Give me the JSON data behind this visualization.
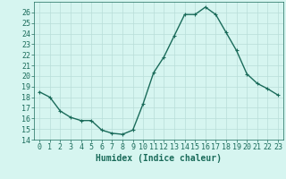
{
  "x": [
    0,
    1,
    2,
    3,
    4,
    5,
    6,
    7,
    8,
    9,
    10,
    11,
    12,
    13,
    14,
    15,
    16,
    17,
    18,
    19,
    20,
    21,
    22,
    23
  ],
  "y": [
    18.5,
    18.0,
    16.7,
    16.1,
    15.8,
    15.8,
    14.9,
    14.6,
    14.5,
    14.9,
    17.4,
    20.3,
    21.8,
    23.8,
    25.8,
    25.8,
    26.5,
    25.8,
    24.1,
    22.4,
    20.2,
    19.3,
    18.8,
    18.2
  ],
  "xlabel": "Humidex (Indice chaleur)",
  "xlim": [
    -0.5,
    23.5
  ],
  "ylim": [
    14,
    27
  ],
  "yticks": [
    14,
    15,
    16,
    17,
    18,
    19,
    20,
    21,
    22,
    23,
    24,
    25,
    26
  ],
  "xticks": [
    0,
    1,
    2,
    3,
    4,
    5,
    6,
    7,
    8,
    9,
    10,
    11,
    12,
    13,
    14,
    15,
    16,
    17,
    18,
    19,
    20,
    21,
    22,
    23
  ],
  "xtick_labels": [
    "0",
    "1",
    "2",
    "3",
    "4",
    "5",
    "6",
    "7",
    "8",
    "9",
    "10",
    "11",
    "12",
    "13",
    "14",
    "15",
    "16",
    "17",
    "18",
    "19",
    "20",
    "21",
    "22",
    "23"
  ],
  "line_color": "#1a6b5a",
  "marker": "+",
  "marker_size": 3,
  "background_color": "#d6f5f0",
  "grid_color": "#b8ddd8",
  "xlabel_fontsize": 7,
  "tick_fontsize": 6,
  "linewidth": 1.0
}
